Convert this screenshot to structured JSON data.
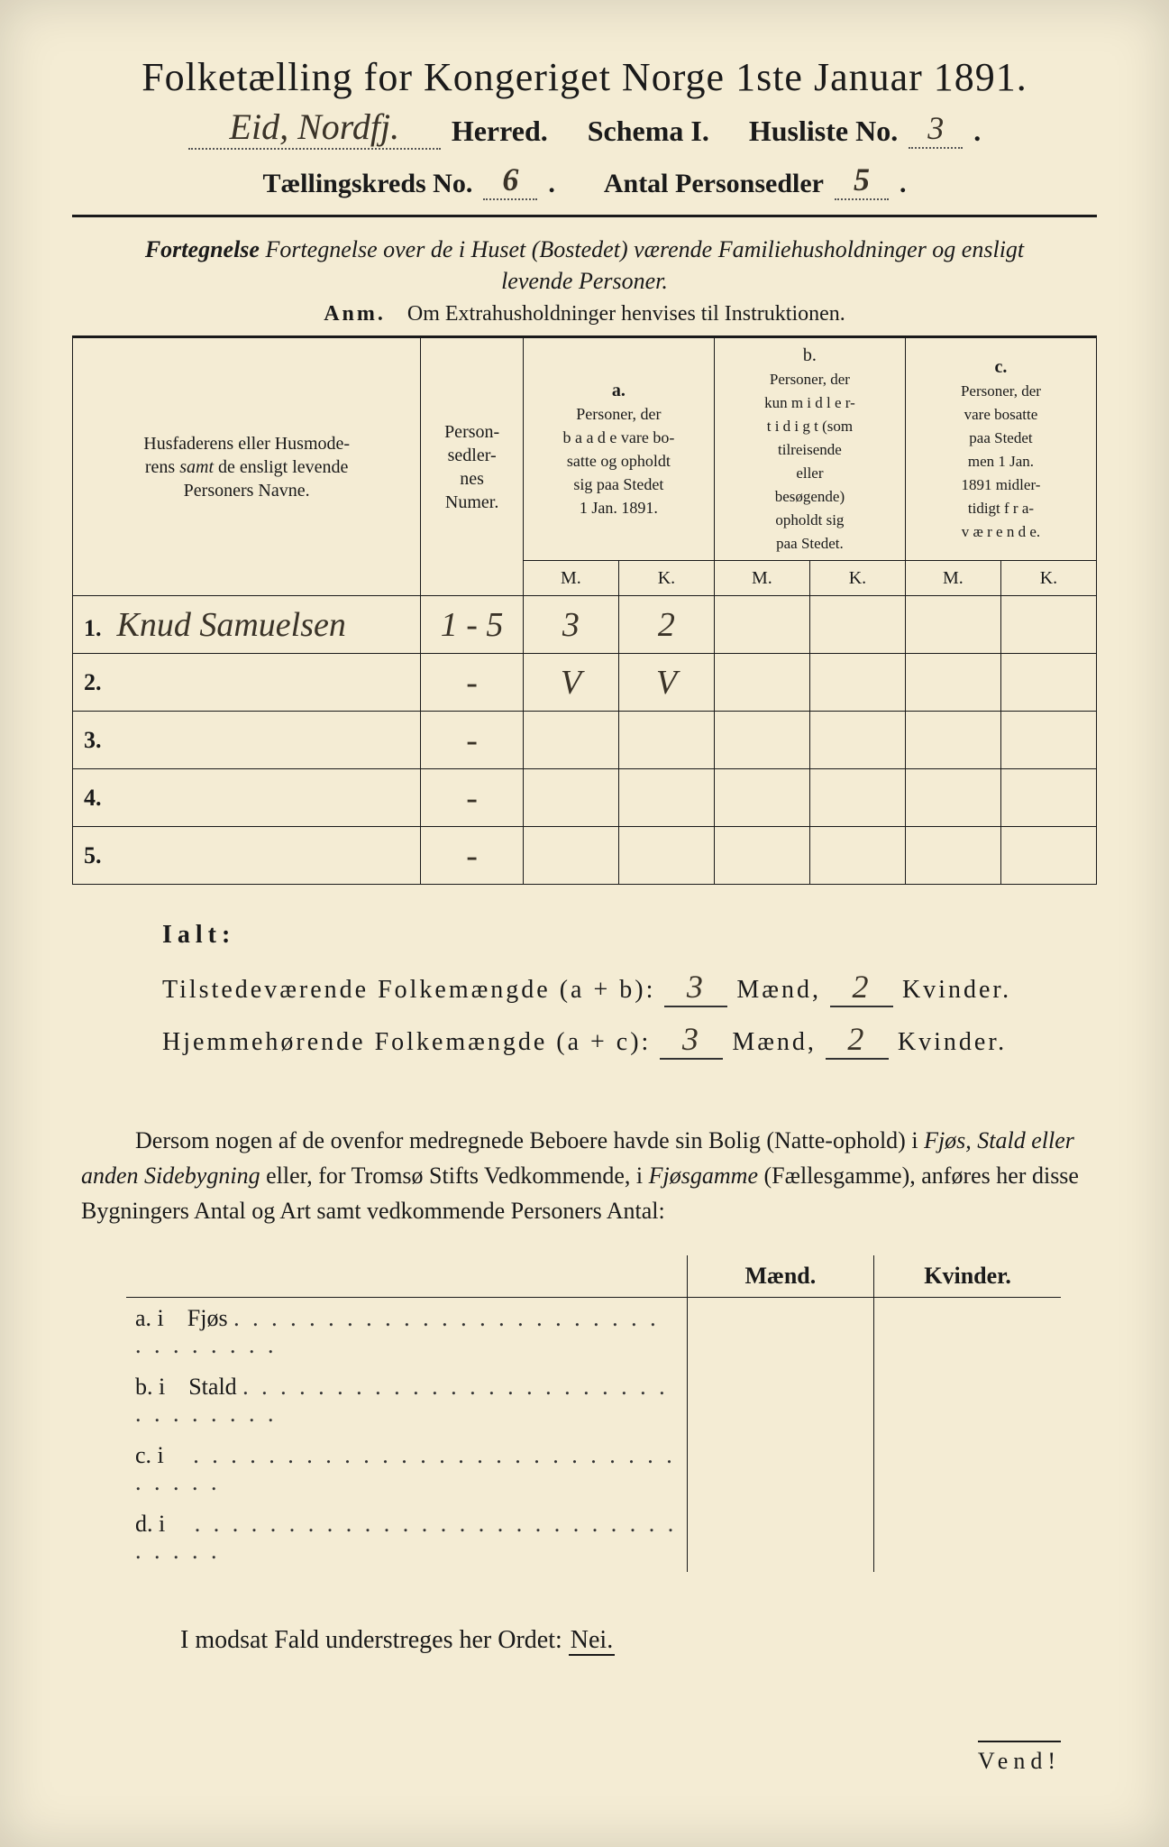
{
  "header": {
    "title": "Folketælling for Kongeriget Norge 1ste Januar 1891.",
    "location_handwritten": "Eid, Nordfj.",
    "herred_label": "Herred.",
    "schema_label": "Schema I.",
    "husliste_label": "Husliste No.",
    "husliste_no": "3",
    "kreds_label": "Tællingskreds No.",
    "kreds_no": "6",
    "antal_label": "Antal Personsedler",
    "antal_no": "5"
  },
  "subtitle": "Fortegnelse over de i Huset (Bostedet) værende Familiehusholdninger og ensligt levende Personer.",
  "anm_label": "Anm.",
  "anm_text": "Om Extrahusholdninger henvises til Instruktionen.",
  "table": {
    "col_name": "Husfaderens eller Husmoderens samt de ensligt levende Personers Navne.",
    "col_num": "Person-sedler-nes Numer.",
    "col_a_label": "a.",
    "col_a": "Personer, der baade vare bosatte og opholdt sig paa Stedet 1 Jan. 1891.",
    "col_b_label": "b.",
    "col_b": "Personer, der kun midler-tidigt (som tilreisende eller besøgende) opholdt sig paa Stedet.",
    "col_c_label": "c.",
    "col_c": "Personer, der vare bosatte paa Stedet men 1 Jan. 1891 midler-tidigt fra-værende.",
    "m": "M.",
    "k": "K.",
    "rows": [
      {
        "n": "1.",
        "name": "Knud Samuelsen",
        "num": "1 - 5",
        "am": "3",
        "ak": "2",
        "bm": "",
        "bk": "",
        "cm": "",
        "ck": ""
      },
      {
        "n": "2.",
        "name": "",
        "num": "-",
        "am": "V",
        "ak": "V",
        "bm": "",
        "bk": "",
        "cm": "",
        "ck": ""
      },
      {
        "n": "3.",
        "name": "",
        "num": "-",
        "am": "",
        "ak": "",
        "bm": "",
        "bk": "",
        "cm": "",
        "ck": ""
      },
      {
        "n": "4.",
        "name": "",
        "num": "-",
        "am": "",
        "ak": "",
        "bm": "",
        "bk": "",
        "cm": "",
        "ck": ""
      },
      {
        "n": "5.",
        "name": "",
        "num": "-",
        "am": "",
        "ak": "",
        "bm": "",
        "bk": "",
        "cm": "",
        "ck": ""
      }
    ]
  },
  "ialt": {
    "label": "Ialt:",
    "row1_pre": "Tilstedeværende Folkemængde (a + b):",
    "row2_pre": "Hjemmehørende Folkemængde (a + c):",
    "maend": "Mænd,",
    "kvinder": "Kvinder.",
    "r1m": "3",
    "r1k": "2",
    "r2m": "3",
    "r2k": "2"
  },
  "para": "Dersom nogen af de ovenfor medregnede Beboere havde sin Bolig (Natte-ophold) i Fjøs, Stald eller anden Sidebygning eller, for Tromsø Stifts Vedkommende, i Fjøsgamme (Fællesgamme), anføres her disse Bygningers Antal og Art samt vedkommende Personers Antal:",
  "side": {
    "maend": "Mænd.",
    "kvinder": "Kvinder.",
    "rows": [
      {
        "l": "a.  i",
        "t": "Fjøs"
      },
      {
        "l": "b.  i",
        "t": "Stald"
      },
      {
        "l": "c.  i",
        "t": ""
      },
      {
        "l": "d.  i",
        "t": ""
      }
    ]
  },
  "modsat": "I modsat Fald understreges her Ordet:",
  "nei": "Nei.",
  "vend": "Vend!"
}
